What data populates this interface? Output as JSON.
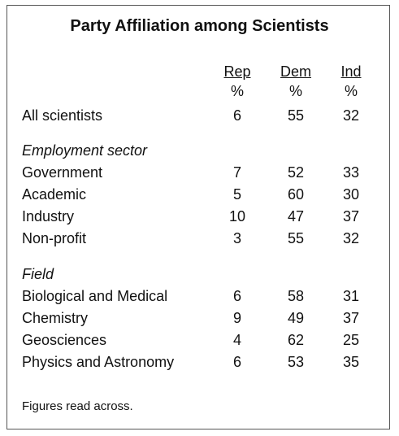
{
  "title": "Party Affiliation among Scientists",
  "table": {
    "columns": [
      "Rep",
      "Dem",
      "Ind"
    ],
    "units": [
      "%",
      "%",
      "%"
    ],
    "overall": {
      "label": "All scientists",
      "values": [
        6,
        55,
        32
      ]
    },
    "groups": [
      {
        "heading": "Employment sector",
        "rows": [
          {
            "label": "Government",
            "values": [
              7,
              52,
              33
            ]
          },
          {
            "label": "Academic",
            "values": [
              5,
              60,
              30
            ]
          },
          {
            "label": "Industry",
            "values": [
              10,
              47,
              37
            ]
          },
          {
            "label": "Non-profit",
            "values": [
              3,
              55,
              32
            ]
          }
        ]
      },
      {
        "heading": "Field",
        "rows": [
          {
            "label": "Biological and Medical",
            "values": [
              6,
              58,
              31
            ]
          },
          {
            "label": "Chemistry",
            "values": [
              9,
              49,
              37
            ]
          },
          {
            "label": "Geosciences",
            "values": [
              4,
              62,
              25
            ]
          },
          {
            "label": "Physics and Astronomy",
            "values": [
              6,
              53,
              35
            ]
          }
        ]
      }
    ]
  },
  "footnote": "Figures read across."
}
